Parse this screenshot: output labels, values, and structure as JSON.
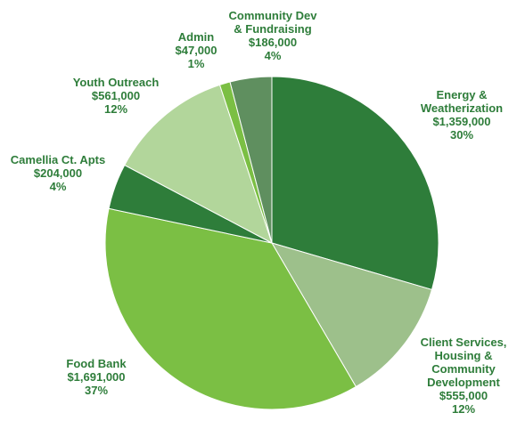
{
  "chart_data": {
    "type": "pie",
    "title": "",
    "start": "top (12 o'clock)",
    "direction": "clockwise",
    "slices": [
      {
        "label": "Energy & Weatherization",
        "amount": "$1,359,000",
        "percent": "30%",
        "value": 1359000,
        "color": "#2e7d3a"
      },
      {
        "label": "Client Services, Housing & Community Development",
        "amount": "$555,000",
        "percent": "12%",
        "value": 555000,
        "color": "#9dc08b"
      },
      {
        "label": "Food Bank",
        "amount": "$1,691,000",
        "percent": "37%",
        "value": 1691000,
        "color": "#7bbf44"
      },
      {
        "label": "Camellia Ct. Apts",
        "amount": "$204,000",
        "percent": "4%",
        "value": 204000,
        "color": "#2e7d3a"
      },
      {
        "label": "Youth Outreach",
        "amount": "$561,000",
        "percent": "12%",
        "value": 561000,
        "color": "#b2d69b"
      },
      {
        "label": "Admin",
        "amount": "$47,000",
        "percent": "1%",
        "value": 47000,
        "color": "#7bbf44"
      },
      {
        "label": "Community Dev & Fundraising",
        "amount": "$186,000",
        "percent": "4%",
        "value": 186000,
        "color": "#5f8f5f"
      }
    ]
  },
  "labels": [
    {
      "lines": [
        "Energy &",
        "Weatherization",
        "$1,359,000",
        "30%"
      ]
    },
    {
      "lines": [
        "Client Services,",
        "Housing &",
        "Community",
        "Development",
        "$555,000",
        "12%"
      ]
    },
    {
      "lines": [
        "Food Bank",
        "$1,691,000",
        "37%"
      ]
    },
    {
      "lines": [
        "Camellia Ct. Apts",
        "$204,000",
        "4%"
      ]
    },
    {
      "lines": [
        "Youth Outreach",
        "$561,000",
        "12%"
      ]
    },
    {
      "lines": [
        "Admin",
        "$47,000",
        "1%"
      ]
    },
    {
      "lines": [
        "Community Dev",
        "& Fundraising",
        "$186,000",
        "4%"
      ]
    }
  ]
}
